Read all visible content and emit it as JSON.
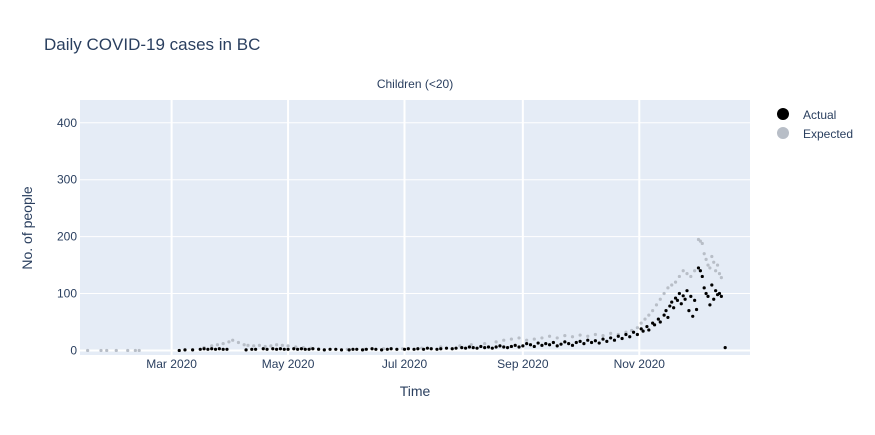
{
  "title": "Daily COVID-19 cases in BC",
  "chart_data": {
    "type": "scatter",
    "title": "Daily COVID-19 cases in BC",
    "subplot_title": "Children (<20)",
    "xlabel": "Time",
    "ylabel": "No. of people",
    "xlim": [
      "2020-01-13",
      "2020-12-29"
    ],
    "ylim": [
      -8,
      440
    ],
    "x_ticks": [
      {
        "date": "2020-03-01",
        "label": "Mar 2020"
      },
      {
        "date": "2020-05-01",
        "label": "May 2020"
      },
      {
        "date": "2020-07-01",
        "label": "Jul 2020"
      },
      {
        "date": "2020-09-01",
        "label": "Sep 2020"
      },
      {
        "date": "2020-11-01",
        "label": "Nov 2020"
      }
    ],
    "y_ticks": [
      0,
      100,
      200,
      300,
      400
    ],
    "grid": true,
    "legend_position": "top-right",
    "series": [
      {
        "name": "Actual",
        "color": "#000000",
        "points": [
          [
            "2020-03-05",
            0
          ],
          [
            "2020-03-08",
            1
          ],
          [
            "2020-03-12",
            1
          ],
          [
            "2020-03-16",
            2
          ],
          [
            "2020-03-18",
            3
          ],
          [
            "2020-03-20",
            2
          ],
          [
            "2020-03-22",
            3
          ],
          [
            "2020-03-24",
            2
          ],
          [
            "2020-03-26",
            3
          ],
          [
            "2020-03-28",
            2
          ],
          [
            "2020-03-30",
            2
          ],
          [
            "2020-04-09",
            1
          ],
          [
            "2020-04-12",
            2
          ],
          [
            "2020-04-14",
            2
          ],
          [
            "2020-04-18",
            3
          ],
          [
            "2020-04-20",
            2
          ],
          [
            "2020-04-23",
            3
          ],
          [
            "2020-04-25",
            2
          ],
          [
            "2020-04-27",
            3
          ],
          [
            "2020-04-29",
            2
          ],
          [
            "2020-05-01",
            2
          ],
          [
            "2020-05-04",
            3
          ],
          [
            "2020-05-06",
            2
          ],
          [
            "2020-05-08",
            3
          ],
          [
            "2020-05-10",
            2
          ],
          [
            "2020-05-12",
            2
          ],
          [
            "2020-05-14",
            3
          ],
          [
            "2020-05-17",
            2
          ],
          [
            "2020-05-20",
            1
          ],
          [
            "2020-05-23",
            2
          ],
          [
            "2020-05-26",
            2
          ],
          [
            "2020-05-29",
            1
          ],
          [
            "2020-06-02",
            1
          ],
          [
            "2020-06-04",
            2
          ],
          [
            "2020-06-06",
            2
          ],
          [
            "2020-06-09",
            1
          ],
          [
            "2020-06-11",
            2
          ],
          [
            "2020-06-14",
            3
          ],
          [
            "2020-06-16",
            2
          ],
          [
            "2020-06-19",
            1
          ],
          [
            "2020-06-22",
            2
          ],
          [
            "2020-06-24",
            3
          ],
          [
            "2020-06-27",
            2
          ],
          [
            "2020-07-01",
            2
          ],
          [
            "2020-07-03",
            3
          ],
          [
            "2020-07-06",
            2
          ],
          [
            "2020-07-08",
            3
          ],
          [
            "2020-07-11",
            2
          ],
          [
            "2020-07-13",
            4
          ],
          [
            "2020-07-15",
            3
          ],
          [
            "2020-07-18",
            2
          ],
          [
            "2020-07-20",
            3
          ],
          [
            "2020-07-23",
            4
          ],
          [
            "2020-07-26",
            3
          ],
          [
            "2020-07-28",
            4
          ],
          [
            "2020-07-31",
            5
          ],
          [
            "2020-08-02",
            4
          ],
          [
            "2020-08-04",
            6
          ],
          [
            "2020-08-06",
            5
          ],
          [
            "2020-08-08",
            4
          ],
          [
            "2020-08-10",
            7
          ],
          [
            "2020-08-12",
            5
          ],
          [
            "2020-08-14",
            6
          ],
          [
            "2020-08-16",
            4
          ],
          [
            "2020-08-18",
            6
          ],
          [
            "2020-08-20",
            8
          ],
          [
            "2020-08-22",
            6
          ],
          [
            "2020-08-24",
            5
          ],
          [
            "2020-08-26",
            7
          ],
          [
            "2020-08-28",
            9
          ],
          [
            "2020-08-30",
            6
          ],
          [
            "2020-09-01",
            8
          ],
          [
            "2020-09-03",
            12
          ],
          [
            "2020-09-05",
            10
          ],
          [
            "2020-09-07",
            7
          ],
          [
            "2020-09-09",
            13
          ],
          [
            "2020-09-11",
            9
          ],
          [
            "2020-09-13",
            12
          ],
          [
            "2020-09-15",
            10
          ],
          [
            "2020-09-17",
            14
          ],
          [
            "2020-09-19",
            8
          ],
          [
            "2020-09-21",
            11
          ],
          [
            "2020-09-23",
            15
          ],
          [
            "2020-09-25",
            12
          ],
          [
            "2020-09-27",
            9
          ],
          [
            "2020-09-29",
            14
          ],
          [
            "2020-10-01",
            16
          ],
          [
            "2020-10-03",
            12
          ],
          [
            "2020-10-05",
            18
          ],
          [
            "2020-10-07",
            14
          ],
          [
            "2020-10-09",
            17
          ],
          [
            "2020-10-11",
            13
          ],
          [
            "2020-10-13",
            20
          ],
          [
            "2020-10-15",
            16
          ],
          [
            "2020-10-17",
            22
          ],
          [
            "2020-10-19",
            18
          ],
          [
            "2020-10-21",
            25
          ],
          [
            "2020-10-23",
            21
          ],
          [
            "2020-10-25",
            28
          ],
          [
            "2020-10-27",
            24
          ],
          [
            "2020-10-29",
            32
          ],
          [
            "2020-10-31",
            28
          ],
          [
            "2020-11-02",
            38
          ],
          [
            "2020-11-03",
            34
          ],
          [
            "2020-11-05",
            42
          ],
          [
            "2020-11-06",
            36
          ],
          [
            "2020-11-08",
            48
          ],
          [
            "2020-11-09",
            45
          ],
          [
            "2020-11-11",
            55
          ],
          [
            "2020-11-12",
            50
          ],
          [
            "2020-11-14",
            62
          ],
          [
            "2020-11-15",
            70
          ],
          [
            "2020-11-16",
            58
          ],
          [
            "2020-11-17",
            78
          ],
          [
            "2020-11-18",
            85
          ],
          [
            "2020-11-19",
            75
          ],
          [
            "2020-11-20",
            92
          ],
          [
            "2020-11-21",
            88
          ],
          [
            "2020-11-22",
            100
          ],
          [
            "2020-11-23",
            82
          ],
          [
            "2020-11-24",
            96
          ],
          [
            "2020-11-25",
            90
          ],
          [
            "2020-11-26",
            105
          ],
          [
            "2020-11-27",
            70
          ],
          [
            "2020-11-28",
            95
          ],
          [
            "2020-11-29",
            60
          ],
          [
            "2020-11-30",
            88
          ],
          [
            "2020-12-01",
            72
          ],
          [
            "2020-12-02",
            145
          ],
          [
            "2020-12-03",
            140
          ],
          [
            "2020-12-04",
            130
          ],
          [
            "2020-12-05",
            110
          ],
          [
            "2020-12-06",
            100
          ],
          [
            "2020-12-07",
            95
          ],
          [
            "2020-12-08",
            80
          ],
          [
            "2020-12-09",
            115
          ],
          [
            "2020-12-10",
            90
          ],
          [
            "2020-12-11",
            105
          ],
          [
            "2020-12-12",
            98
          ],
          [
            "2020-12-13",
            100
          ],
          [
            "2020-12-14",
            95
          ],
          [
            "2020-12-16",
            5
          ]
        ]
      },
      {
        "name": "Expected",
        "color": "#b8bec7",
        "points": [
          [
            "2020-01-17",
            0
          ],
          [
            "2020-01-24",
            0
          ],
          [
            "2020-01-27",
            0
          ],
          [
            "2020-02-01",
            0
          ],
          [
            "2020-02-07",
            0
          ],
          [
            "2020-02-11",
            0
          ],
          [
            "2020-02-13",
            0
          ],
          [
            "2020-03-18",
            5
          ],
          [
            "2020-03-22",
            8
          ],
          [
            "2020-03-25",
            10
          ],
          [
            "2020-03-28",
            12
          ],
          [
            "2020-03-31",
            15
          ],
          [
            "2020-04-02",
            18
          ],
          [
            "2020-04-05",
            14
          ],
          [
            "2020-04-08",
            10
          ],
          [
            "2020-04-10",
            9
          ],
          [
            "2020-04-13",
            8
          ],
          [
            "2020-04-16",
            9
          ],
          [
            "2020-04-19",
            7
          ],
          [
            "2020-04-22",
            8
          ],
          [
            "2020-04-25",
            10
          ],
          [
            "2020-04-28",
            9
          ],
          [
            "2020-05-01",
            8
          ],
          [
            "2020-05-05",
            6
          ],
          [
            "2020-05-09",
            5
          ],
          [
            "2020-05-13",
            4
          ],
          [
            "2020-05-17",
            3
          ],
          [
            "2020-06-01",
            2
          ],
          [
            "2020-06-10",
            2
          ],
          [
            "2020-06-20",
            3
          ],
          [
            "2020-06-30",
            3
          ],
          [
            "2020-07-10",
            4
          ],
          [
            "2020-07-20",
            6
          ],
          [
            "2020-07-30",
            8
          ],
          [
            "2020-08-05",
            10
          ],
          [
            "2020-08-12",
            12
          ],
          [
            "2020-08-18",
            15
          ],
          [
            "2020-08-22",
            18
          ],
          [
            "2020-08-26",
            20
          ],
          [
            "2020-08-30",
            22
          ],
          [
            "2020-09-03",
            18
          ],
          [
            "2020-09-07",
            20
          ],
          [
            "2020-09-11",
            22
          ],
          [
            "2020-09-15",
            25
          ],
          [
            "2020-09-19",
            22
          ],
          [
            "2020-09-23",
            26
          ],
          [
            "2020-09-27",
            24
          ],
          [
            "2020-10-01",
            27
          ],
          [
            "2020-10-05",
            25
          ],
          [
            "2020-10-09",
            28
          ],
          [
            "2020-10-13",
            26
          ],
          [
            "2020-10-17",
            30
          ],
          [
            "2020-10-21",
            28
          ],
          [
            "2020-10-25",
            32
          ],
          [
            "2020-10-28",
            35
          ],
          [
            "2020-10-31",
            40
          ],
          [
            "2020-11-02",
            48
          ],
          [
            "2020-11-04",
            55
          ],
          [
            "2020-11-06",
            62
          ],
          [
            "2020-11-08",
            70
          ],
          [
            "2020-11-10",
            80
          ],
          [
            "2020-11-12",
            90
          ],
          [
            "2020-11-14",
            100
          ],
          [
            "2020-11-16",
            110
          ],
          [
            "2020-11-18",
            115
          ],
          [
            "2020-11-20",
            120
          ],
          [
            "2020-11-22",
            130
          ],
          [
            "2020-11-24",
            140
          ],
          [
            "2020-11-26",
            135
          ],
          [
            "2020-11-28",
            130
          ],
          [
            "2020-11-30",
            140
          ],
          [
            "2020-12-02",
            195
          ],
          [
            "2020-12-03",
            192
          ],
          [
            "2020-12-04",
            188
          ],
          [
            "2020-12-05",
            170
          ],
          [
            "2020-12-06",
            160
          ],
          [
            "2020-12-07",
            150
          ],
          [
            "2020-12-08",
            145
          ],
          [
            "2020-12-09",
            165
          ],
          [
            "2020-12-10",
            155
          ],
          [
            "2020-12-11",
            140
          ],
          [
            "2020-12-12",
            150
          ],
          [
            "2020-12-13",
            135
          ],
          [
            "2020-12-14",
            128
          ]
        ]
      }
    ]
  }
}
